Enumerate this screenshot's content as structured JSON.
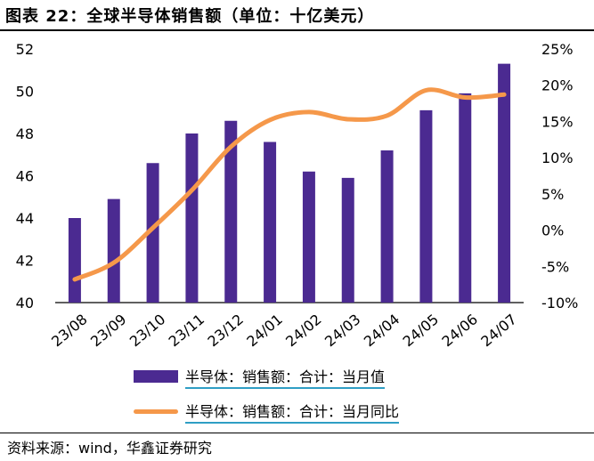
{
  "title": "图表 22：全球半导体销售额（单位：十亿美元）",
  "source": "资料来源：wind，华鑫证券研究",
  "colors": {
    "bar": "#4b2a91",
    "line": "#f5984a",
    "legend_underline": "#2f9ec4"
  },
  "chart_data": {
    "type": "bar",
    "categories": [
      "23/08",
      "23/09",
      "23/10",
      "23/11",
      "23/12",
      "24/01",
      "24/02",
      "24/03",
      "24/04",
      "24/05",
      "24/06",
      "24/07"
    ],
    "series": [
      {
        "name": "半导体：销售额：合计：当月值",
        "type": "bar",
        "axis": "left",
        "values": [
          44.0,
          44.9,
          46.6,
          48.0,
          48.6,
          47.6,
          46.2,
          45.9,
          47.2,
          49.1,
          49.9,
          51.3
        ]
      },
      {
        "name": "半导体：销售额：合计：当月同比",
        "type": "line",
        "axis": "right",
        "values": [
          -6.8,
          -4.5,
          0.3,
          5.5,
          11.5,
          15.2,
          16.3,
          15.3,
          15.8,
          19.3,
          18.3,
          18.7
        ]
      }
    ],
    "y_left": {
      "min": 40,
      "max": 52,
      "ticks": [
        "40",
        "42",
        "44",
        "46",
        "48",
        "50",
        "52"
      ]
    },
    "y_right": {
      "min": -10,
      "max": 25,
      "ticks": [
        "-10%",
        "-5%",
        "0%",
        "5%",
        "10%",
        "15%",
        "20%",
        "25%"
      ]
    },
    "legend": [
      "半导体：销售额：合计：当月值",
      "半导体：销售额：合计：当月同比"
    ]
  }
}
